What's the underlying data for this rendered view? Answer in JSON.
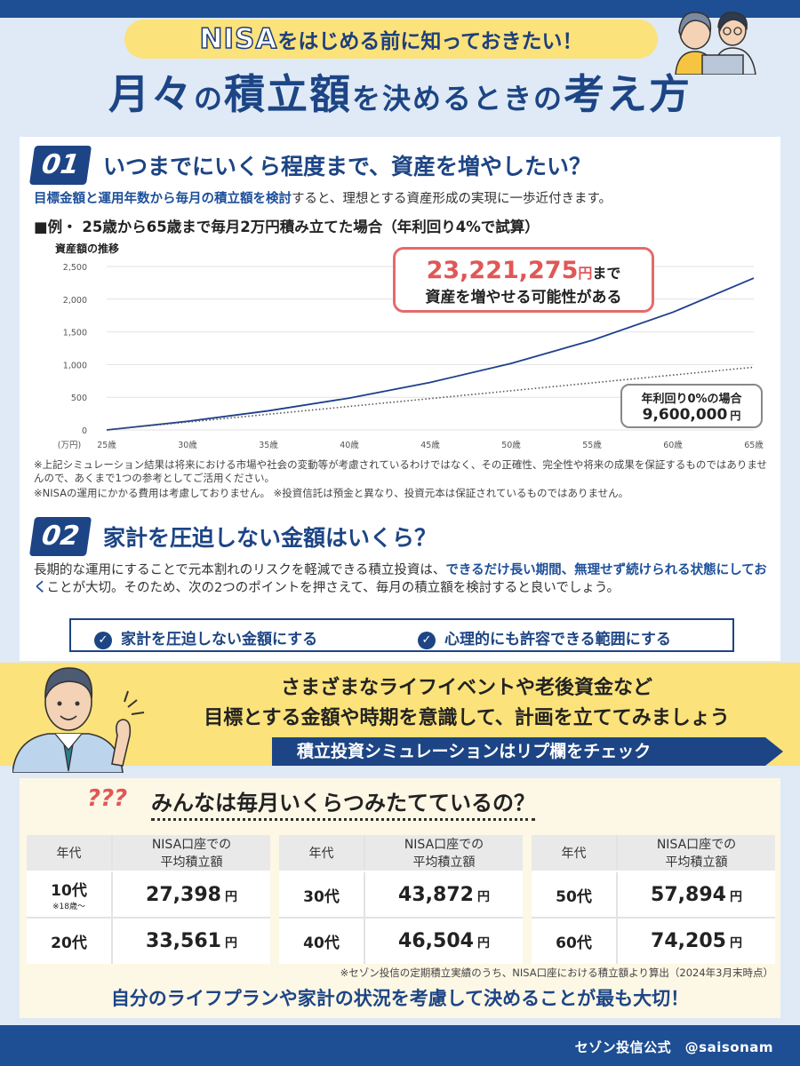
{
  "header": {
    "pill_nisa": "NISA",
    "pill_rest": "をはじめる前に知っておきたい！",
    "title_1": "月々",
    "title_2": "の",
    "title_3": "積立額",
    "title_4": "を決めるときの",
    "title_5": "考え方"
  },
  "section1": {
    "number": "01",
    "heading": "いつまでにいくら程度まで、資産を増やしたい？",
    "lead_bold": "目標金額と運用年数から毎月の積立額を検討",
    "lead_rest": "すると、理想とする資産形成の実現に一歩近付きます。",
    "example": "■例・ 25歳から65歳まで毎月2万円積み立てた場合（年利回り4%で試算）",
    "bubble_amount": "23,221,275",
    "bubble_yen": "円",
    "bubble_made": "まで",
    "bubble_line2": "資産を増やせる可能性がある",
    "zero_label": "年利回り0%の場合",
    "zero_amount": "9,600,000",
    "zero_yen": "円",
    "note1": "※上記シミュレーション結果は将来における市場や社会の変動等が考慮されているわけではなく、その正確性、完全性や将来の成果を保証するものではありませんので、あくまで1つの参考としてご活用ください。",
    "note2": "※NISAの運用にかかる費用は考慮しておりません。 ※投資信託は預金と異なり、投資元本は保証されているものではありません。"
  },
  "chart_data": {
    "type": "line",
    "title": "資産額の推移",
    "yunit": "(万円)",
    "x_ticks": [
      "25歳",
      "30歳",
      "35歳",
      "40歳",
      "45歳",
      "50歳",
      "55歳",
      "60歳",
      "65歳"
    ],
    "y_ticks": [
      "0",
      "500",
      "1,000",
      "1,500",
      "2,000",
      "2,500"
    ],
    "ylim": [
      0,
      2500
    ],
    "x": [
      25,
      30,
      35,
      40,
      45,
      50,
      55,
      60,
      65
    ],
    "series": [
      {
        "name": "年利回り4%",
        "style": "solid",
        "color": "#1d3f8c",
        "values": [
          0,
          132,
          293,
          488,
          727,
          1017,
          1371,
          1801,
          2322
        ]
      },
      {
        "name": "年利回り0%",
        "style": "dotted",
        "color": "#555555",
        "values": [
          0,
          120,
          240,
          360,
          480,
          600,
          720,
          840,
          960
        ]
      }
    ]
  },
  "section2": {
    "number": "02",
    "heading": "家計を圧迫しない金額はいくら？",
    "p_1": "長期的な運用にすることで元本割れのリスクを軽減できる積立投資は、",
    "p_bold": "できるだけ長い期間、無理せず続けられる状態にしておく",
    "p_2": "ことが大切。そのため、次の2つのポイントを押さえて、毎月の積立額を検討すると良いでしょう。",
    "check1": "家計を圧迫しない金額にする",
    "check2": "心理的にも許容できる範囲にする",
    "check_icon": "check-icon"
  },
  "band": {
    "line1": "さまざまなライフイベントや老後資金など",
    "line2": "目標とする金額や時期を意識して、計画を立ててみましょう",
    "arrow_text": "積立投資シミュレーションはリプ欄をチェック"
  },
  "survey": {
    "qmarks": "???",
    "heading": "みんなは毎月いくらつみたてているの？",
    "col_age": "年代",
    "col_amount_1": "NISA口座での",
    "col_amount_2": "平均積立額",
    "yen": "円",
    "rows": [
      {
        "age": "10代",
        "sub": "※18歳〜",
        "amount": "27,398"
      },
      {
        "age": "20代",
        "amount": "33,561"
      },
      {
        "age": "30代",
        "amount": "43,872"
      },
      {
        "age": "40代",
        "amount": "46,504"
      },
      {
        "age": "50代",
        "amount": "57,894"
      },
      {
        "age": "60代",
        "amount": "74,205"
      }
    ],
    "source": "※セゾン投信の定期積立実績のうち、NISA口座における積立額より算出（2024年3月末時点）",
    "conclusion": "自分のライフプランや家計の状況を考慮して決めることが最も大切！"
  },
  "footer": {
    "credit": "セゾン投信公式　@saisonam"
  }
}
